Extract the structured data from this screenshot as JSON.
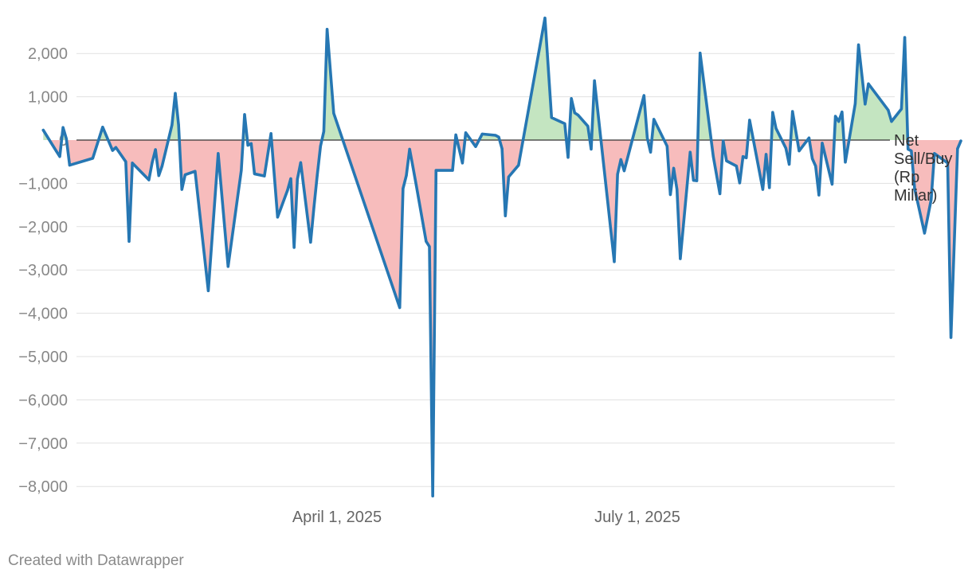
{
  "chart_data": {
    "type": "area",
    "title": "",
    "xlabel": "",
    "ylabel": "",
    "ylim": [
      -8200,
      2850
    ],
    "y_ticks": [
      2000,
      1000,
      0,
      -1000,
      -2000,
      -3000,
      -4000,
      -5000,
      -6000,
      -7000,
      -8000
    ],
    "y_tick_labels": [
      "2,000",
      "1,000",
      "0",
      "−1,000",
      "−2,000",
      "−3,000",
      "−4,000",
      "−5,000",
      "−6,000",
      "−7,000",
      "−8,000"
    ],
    "x_ticks": [
      {
        "date": "2025-04-01",
        "label": "April 1, 2025"
      },
      {
        "date": "2025-07-01",
        "label": "July 1, 2025"
      }
    ],
    "grid": true,
    "series": [
      {
        "name": "Net Sell/Buy (Rp Miliar)",
        "label_lines": [
          "Net",
          "Sell/Buy",
          "(Rp",
          "Miliar)"
        ],
        "points": [
          [
            "2025-01-02",
            230
          ],
          [
            "2025-01-06",
            -260
          ],
          [
            "2025-01-07",
            -380
          ],
          [
            "2025-01-08",
            290
          ],
          [
            "2025-01-09",
            30
          ],
          [
            "2025-01-10",
            -580
          ],
          [
            "2025-01-17",
            -420
          ],
          [
            "2025-01-20",
            300
          ],
          [
            "2025-01-23",
            -240
          ],
          [
            "2025-01-24",
            -170
          ],
          [
            "2025-01-27",
            -500
          ],
          [
            "2025-01-28",
            -2340
          ],
          [
            "2025-01-29",
            -530
          ],
          [
            "2025-02-03",
            -920
          ],
          [
            "2025-02-04",
            -520
          ],
          [
            "2025-02-05",
            -220
          ],
          [
            "2025-02-06",
            -820
          ],
          [
            "2025-02-07",
            -600
          ],
          [
            "2025-02-10",
            350
          ],
          [
            "2025-02-11",
            1080
          ],
          [
            "2025-02-12",
            350
          ],
          [
            "2025-02-13",
            -1140
          ],
          [
            "2025-02-14",
            -800
          ],
          [
            "2025-02-17",
            -720
          ],
          [
            "2025-02-21",
            -3480
          ],
          [
            "2025-02-24",
            -310
          ],
          [
            "2025-02-27",
            -2920
          ],
          [
            "2025-03-03",
            -700
          ],
          [
            "2025-03-04",
            590
          ],
          [
            "2025-03-05",
            -120
          ],
          [
            "2025-03-06",
            -80
          ],
          [
            "2025-03-07",
            -780
          ],
          [
            "2025-03-10",
            -830
          ],
          [
            "2025-03-12",
            150
          ],
          [
            "2025-03-14",
            -1780
          ],
          [
            "2025-03-17",
            -1160
          ],
          [
            "2025-03-18",
            -890
          ],
          [
            "2025-03-19",
            -2480
          ],
          [
            "2025-03-20",
            -900
          ],
          [
            "2025-03-21",
            -520
          ],
          [
            "2025-03-24",
            -2360
          ],
          [
            "2025-03-25",
            -1560
          ],
          [
            "2025-03-26",
            -820
          ],
          [
            "2025-03-27",
            -140
          ],
          [
            "2025-03-28",
            200
          ],
          [
            "2025-03-29",
            2560
          ],
          [
            "2025-03-31",
            620
          ],
          [
            "2025-04-20",
            -3870
          ],
          [
            "2025-04-21",
            -1120
          ],
          [
            "2025-04-22",
            -820
          ],
          [
            "2025-04-23",
            -210
          ],
          [
            "2025-04-24",
            -620
          ],
          [
            "2025-04-25",
            -1040
          ],
          [
            "2025-04-28",
            -2340
          ],
          [
            "2025-04-29",
            -2460
          ],
          [
            "2025-04-30",
            -8220
          ],
          [
            "2025-05-01",
            -700
          ],
          [
            "2025-05-06",
            -700
          ],
          [
            "2025-05-07",
            120
          ],
          [
            "2025-05-09",
            -530
          ],
          [
            "2025-05-10",
            170
          ],
          [
            "2025-05-13",
            -150
          ],
          [
            "2025-05-15",
            140
          ],
          [
            "2025-05-19",
            110
          ],
          [
            "2025-05-20",
            70
          ],
          [
            "2025-05-21",
            -200
          ],
          [
            "2025-05-22",
            -1750
          ],
          [
            "2025-05-23",
            -850
          ],
          [
            "2025-05-26",
            -580
          ],
          [
            "2025-06-03",
            2820
          ],
          [
            "2025-06-05",
            520
          ],
          [
            "2025-06-09",
            380
          ],
          [
            "2025-06-10",
            -400
          ],
          [
            "2025-06-11",
            960
          ],
          [
            "2025-06-12",
            630
          ],
          [
            "2025-06-13",
            580
          ],
          [
            "2025-06-16",
            320
          ],
          [
            "2025-06-17",
            -210
          ],
          [
            "2025-06-18",
            1370
          ],
          [
            "2025-06-24",
            -2810
          ],
          [
            "2025-06-25",
            -790
          ],
          [
            "2025-06-26",
            -450
          ],
          [
            "2025-06-27",
            -710
          ],
          [
            "2025-07-03",
            1030
          ],
          [
            "2025-07-04",
            50
          ],
          [
            "2025-07-05",
            -280
          ],
          [
            "2025-07-06",
            480
          ],
          [
            "2025-07-10",
            -140
          ],
          [
            "2025-07-11",
            -1260
          ],
          [
            "2025-07-12",
            -650
          ],
          [
            "2025-07-13",
            -1140
          ],
          [
            "2025-07-14",
            -2740
          ],
          [
            "2025-07-17",
            -280
          ],
          [
            "2025-07-18",
            -930
          ],
          [
            "2025-07-19",
            -940
          ],
          [
            "2025-07-20",
            2010
          ],
          [
            "2025-07-24",
            -380
          ],
          [
            "2025-07-26",
            -1240
          ],
          [
            "2025-07-27",
            -20
          ],
          [
            "2025-07-28",
            -480
          ],
          [
            "2025-07-31",
            -600
          ],
          [
            "2025-08-01",
            -990
          ],
          [
            "2025-08-02",
            -380
          ],
          [
            "2025-08-03",
            -410
          ],
          [
            "2025-08-04",
            460
          ],
          [
            "2025-08-08",
            -1140
          ],
          [
            "2025-08-09",
            -330
          ],
          [
            "2025-08-10",
            -1100
          ],
          [
            "2025-08-11",
            640
          ],
          [
            "2025-08-12",
            270
          ],
          [
            "2025-08-15",
            -190
          ],
          [
            "2025-08-16",
            -560
          ],
          [
            "2025-08-17",
            660
          ],
          [
            "2025-08-19",
            -250
          ],
          [
            "2025-08-22",
            50
          ],
          [
            "2025-08-23",
            -430
          ],
          [
            "2025-08-24",
            -600
          ],
          [
            "2025-08-25",
            -1270
          ],
          [
            "2025-08-26",
            -70
          ],
          [
            "2025-08-29",
            -1020
          ],
          [
            "2025-08-30",
            550
          ],
          [
            "2025-08-31",
            430
          ],
          [
            "2025-09-01",
            650
          ],
          [
            "2025-09-02",
            -510
          ],
          [
            "2025-09-05",
            840
          ],
          [
            "2025-09-06",
            2200
          ],
          [
            "2025-09-08",
            830
          ],
          [
            "2025-09-09",
            1300
          ],
          [
            "2025-09-15",
            690
          ],
          [
            "2025-09-16",
            430
          ],
          [
            "2025-09-19",
            720
          ],
          [
            "2025-09-20",
            2370
          ],
          [
            "2025-09-21",
            -210
          ],
          [
            "2025-09-22",
            -250
          ],
          [
            "2025-09-23",
            -1120
          ],
          [
            "2025-09-26",
            -2150
          ],
          [
            "2025-09-28",
            -1380
          ],
          [
            "2025-09-29",
            -310
          ],
          [
            "2025-10-03",
            -530
          ],
          [
            "2025-10-04",
            -4560
          ],
          [
            "2025-10-06",
            -200
          ],
          [
            "2025-10-07",
            -20
          ]
        ]
      }
    ],
    "colors": {
      "line": "#2677b3",
      "positive_fill": "#c4e5c1",
      "negative_fill": "#f7bcbc",
      "grid": "#e1e1e1",
      "zero_line": "#333333"
    }
  },
  "credit": "Created with Datawrapper"
}
